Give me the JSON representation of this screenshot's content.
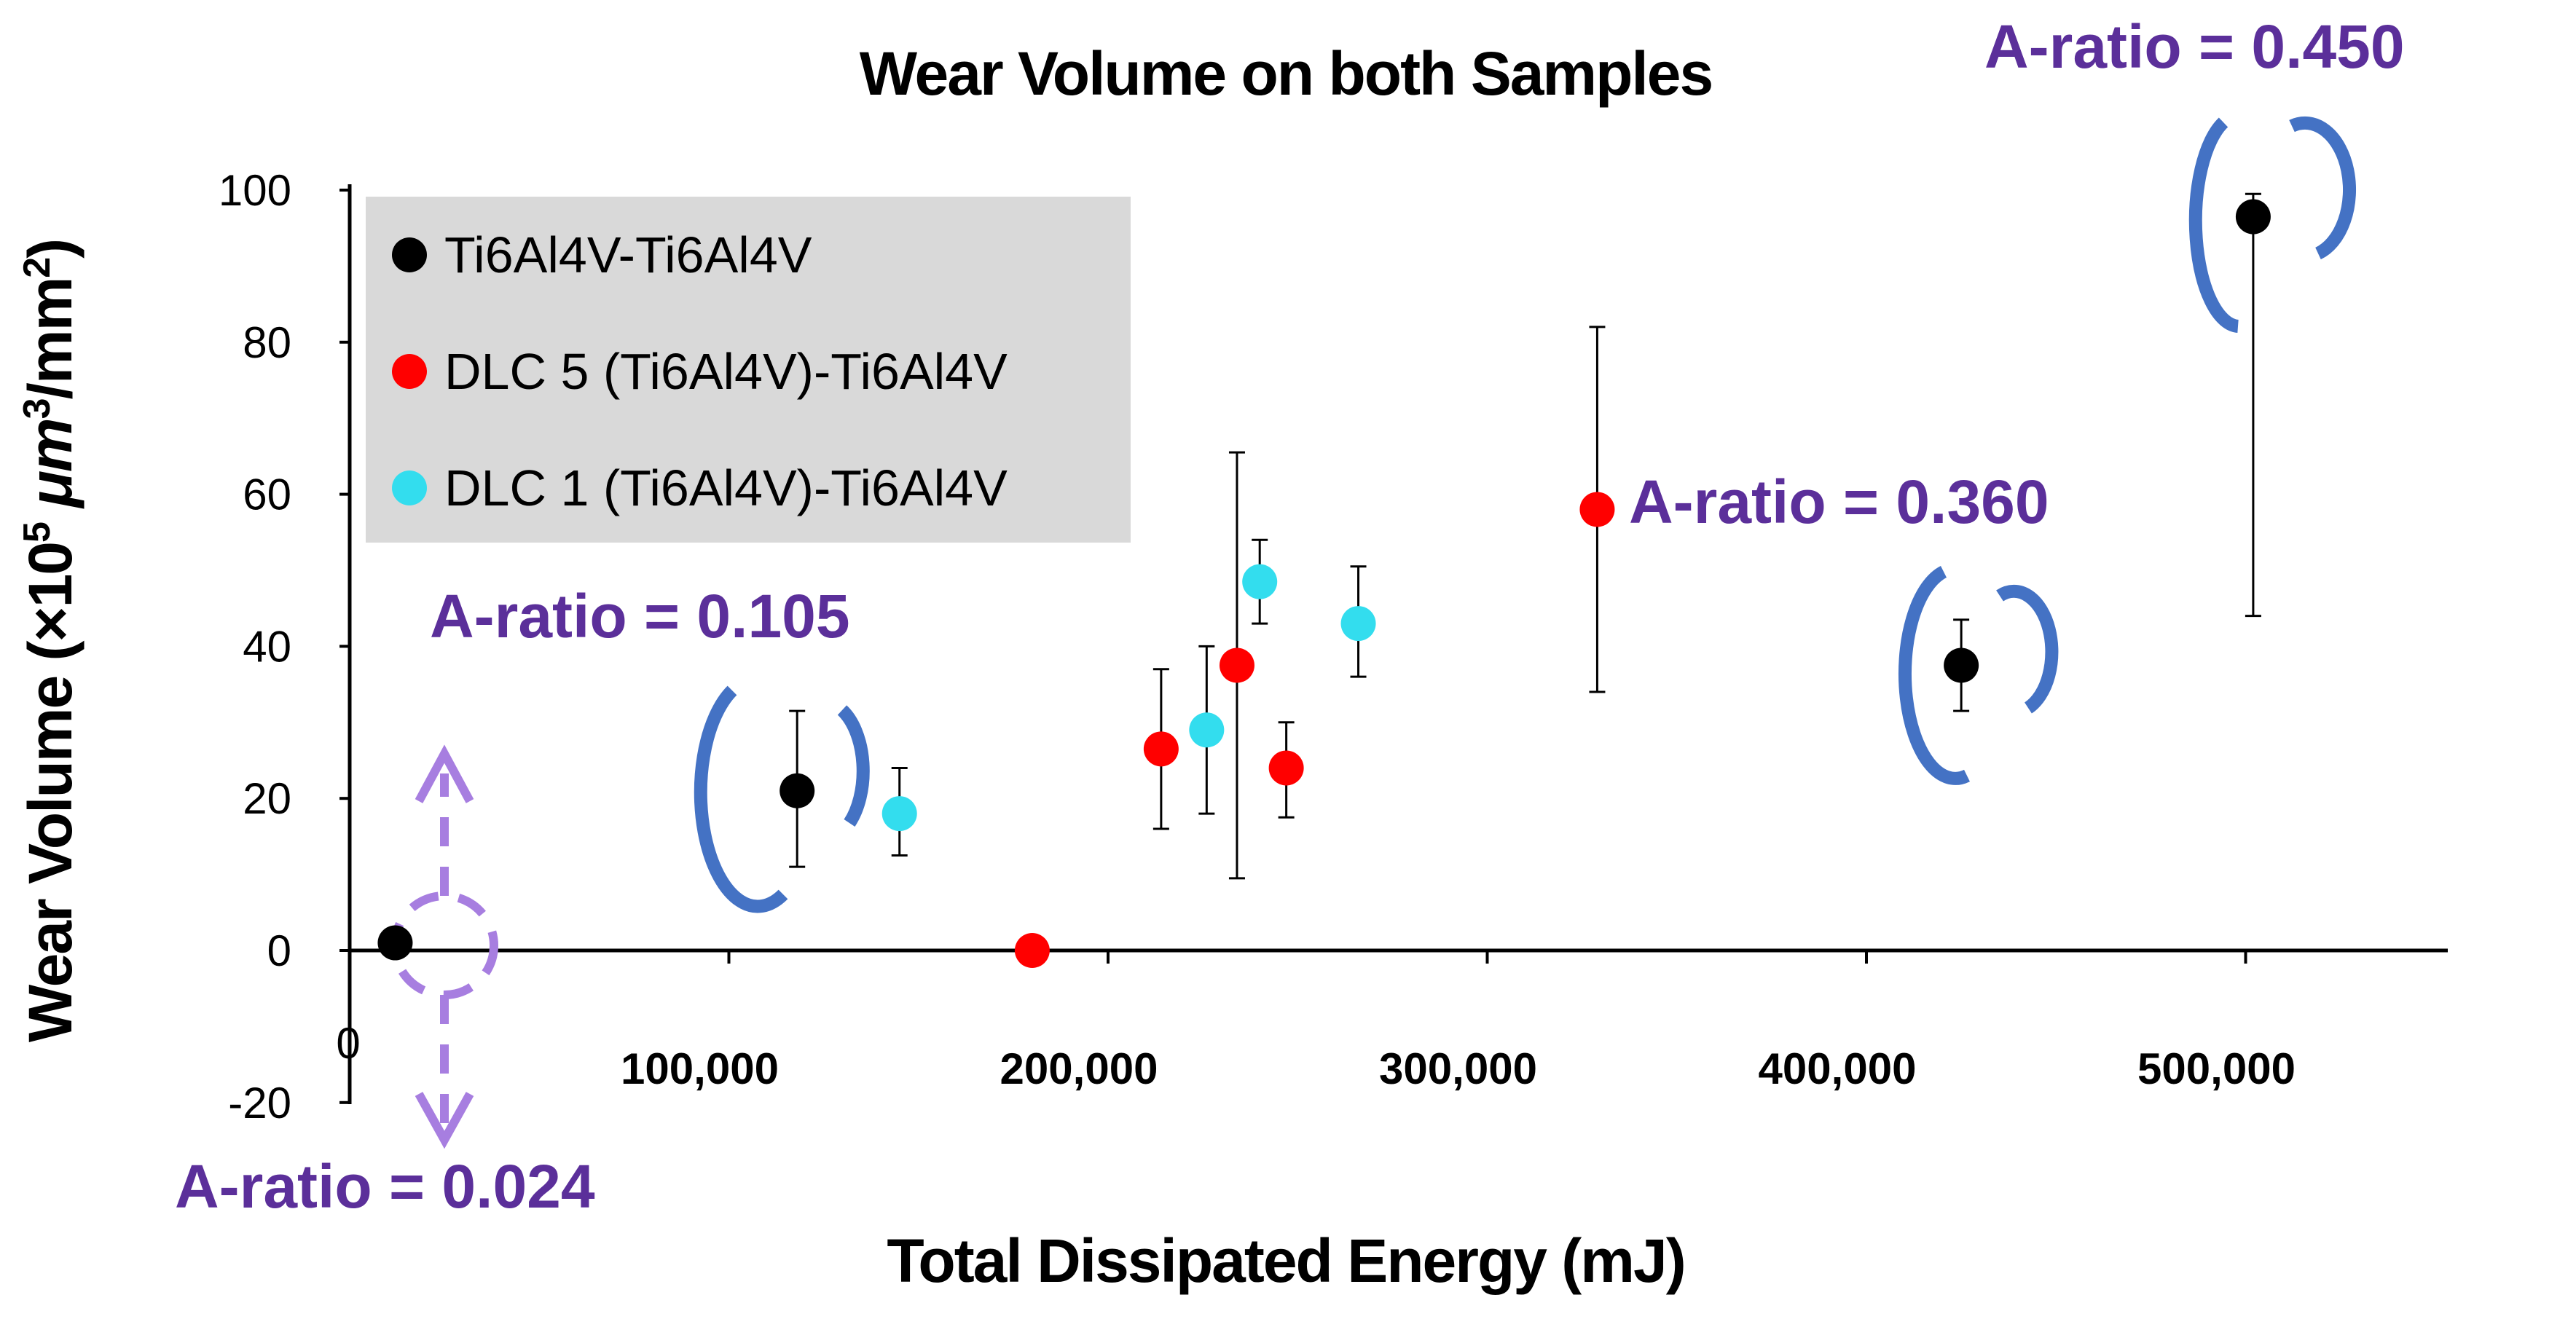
{
  "chart_data": {
    "type": "scatter",
    "title": "Wear Volume on both Samples",
    "xlabel": "Total Dissipated Energy (mJ)",
    "ylabel_parts": [
      "Wear Volume (×10",
      "5",
      " μm",
      "3",
      "/mm",
      "2",
      ")"
    ],
    "xlim": [
      0,
      550000
    ],
    "ylim": [
      -20,
      100
    ],
    "x_ticks": [
      100000,
      200000,
      300000,
      400000,
      500000
    ],
    "x_tick_labels": [
      "100,000",
      "200,000",
      "300,000",
      "400,000",
      "500,000"
    ],
    "x_zero_label": "0",
    "y_ticks": [
      -20,
      0,
      20,
      40,
      60,
      80,
      100
    ],
    "y_tick_labels": [
      "-20",
      "0",
      "20",
      "40",
      "60",
      "80",
      "100"
    ],
    "legend_position": "top-left",
    "series": [
      {
        "name": "Ti6Al4V-Ti6Al4V",
        "color": "#000000",
        "points": [
          {
            "x": 12000,
            "y": 1,
            "err_low": null,
            "err_high": null
          },
          {
            "x": 118000,
            "y": 21,
            "err_low": 11,
            "err_high": 31.5
          },
          {
            "x": 425000,
            "y": 37.5,
            "err_low": 31.5,
            "err_high": 43.5
          },
          {
            "x": 502000,
            "y": 96.5,
            "err_low": 44,
            "err_high": 99.5
          }
        ]
      },
      {
        "name": "DLC 5 (Ti6Al4V)-Ti6Al4V",
        "color": "#ff0000",
        "points": [
          {
            "x": 180000,
            "y": 0,
            "err_low": null,
            "err_high": null
          },
          {
            "x": 214000,
            "y": 26.5,
            "err_low": 16,
            "err_high": 37
          },
          {
            "x": 234000,
            "y": 37.5,
            "err_low": 9.5,
            "err_high": 65.5
          },
          {
            "x": 247000,
            "y": 24,
            "err_low": 17.5,
            "err_high": 30
          },
          {
            "x": 329000,
            "y": 58,
            "err_low": 34,
            "err_high": 82
          }
        ]
      },
      {
        "name": "DLC 1 (Ti6Al4V)-Ti6Al4V",
        "color": "#33ddee",
        "points": [
          {
            "x": 145000,
            "y": 18,
            "err_low": 12.5,
            "err_high": 24
          },
          {
            "x": 226000,
            "y": 29,
            "err_low": 18,
            "err_high": 40
          },
          {
            "x": 240000,
            "y": 48.5,
            "err_low": 43,
            "err_high": 54
          },
          {
            "x": 266000,
            "y": 43,
            "err_low": 36,
            "err_high": 50.5
          }
        ]
      }
    ],
    "annotations": [
      {
        "text": "A-ratio = 0.024"
      },
      {
        "text": "A-ratio = 0.105"
      },
      {
        "text": "A-ratio = 0.360"
      },
      {
        "text": "A-ratio = 0.450"
      }
    ],
    "annotation_color": "#5b2f9a",
    "bracket_color": "#4472c4",
    "circle_marker_color": "#a77ee0"
  }
}
